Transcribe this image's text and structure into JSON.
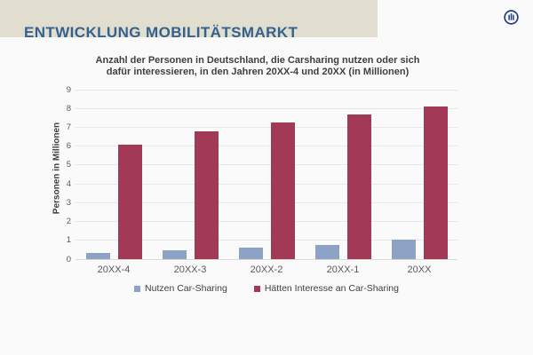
{
  "header": {
    "title": "ENTWICKLUNG MOBILITÄTSMARKT",
    "band_color": "#e1decf",
    "title_color": "#35618e"
  },
  "logo": {
    "description": "allianz-logo",
    "color": "#233a82"
  },
  "chart_data": {
    "type": "bar",
    "title_line1": "Anzahl der Personen in Deutschland, die Carsharing nutzen oder sich",
    "title_line2": "dafür interessieren, in den Jahren 20XX-4 und 20XX (in Millionen)",
    "xlabel": "",
    "ylabel": "Personen in Millionen",
    "categories": [
      "20XX-4",
      "20XX-3",
      "20XX-2",
      "20XX-1",
      "20XX"
    ],
    "series": [
      {
        "name": "Nutzen Car-Sharing",
        "color": "#8da3c6",
        "values": [
          0.35,
          0.45,
          0.6,
          0.75,
          1.05
        ]
      },
      {
        "name": "Hätten Interesse an Car-Sharing",
        "color": "#a23a57",
        "values": [
          6.1,
          6.8,
          7.25,
          7.7,
          8.1
        ]
      }
    ],
    "ylim": [
      0,
      9
    ],
    "yticks": [
      0,
      1,
      2,
      3,
      4,
      5,
      6,
      7,
      8,
      9
    ],
    "grid": true,
    "legend_position": "bottom"
  }
}
